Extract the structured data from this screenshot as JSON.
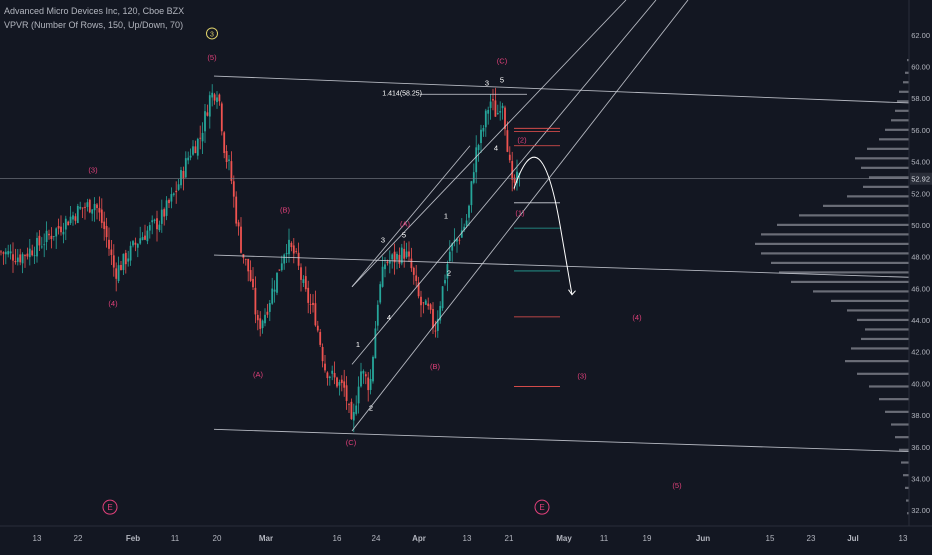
{
  "header": {
    "symbol_line": "Advanced Micro Devices Inc, 120, Cboe BZX",
    "indicator_line": "VPVR (Number Of Rows, 150, Up/Down, 70)"
  },
  "colors": {
    "background": "#131722",
    "wave_label": "#e0407a",
    "wave_label_white": "#ffffff",
    "fib_circle": "#e0d36c",
    "trendline": "#d1d4dc",
    "channel_teal": "#26a69a",
    "projection_red": "#ef5350",
    "volume_profile": "#b2b5be"
  },
  "chart_data": {
    "type": "candlestick",
    "title": "Advanced Micro Devices Inc, 120, Cboe BZX",
    "y_axis": {
      "side": "right",
      "ticks": [
        32.0,
        34.0,
        36.0,
        38.0,
        40.0,
        42.0,
        44.0,
        46.0,
        48.0,
        50.0,
        52.0,
        54.0,
        56.0,
        58.0,
        60.0,
        62.0,
        64.0
      ],
      "current_price": "52.92",
      "range": [
        31.0,
        64.2
      ]
    },
    "x_axis": {
      "ticks": [
        "13",
        "22",
        "Feb",
        "11",
        "20",
        "Mar",
        "16",
        "24",
        "Apr",
        "13",
        "21",
        "May",
        "11",
        "19",
        "Jun",
        "15",
        "23",
        "Jul",
        "13"
      ]
    },
    "price_path": [
      [
        0,
        48.3
      ],
      [
        20,
        48.0
      ],
      [
        40,
        48.8
      ],
      [
        60,
        49.9
      ],
      [
        80,
        51.0
      ],
      [
        95,
        51.4
      ],
      [
        105,
        49.6
      ],
      [
        115,
        47.0
      ],
      [
        125,
        47.8
      ],
      [
        140,
        49.2
      ],
      [
        160,
        50.3
      ],
      [
        175,
        52.0
      ],
      [
        190,
        54.6
      ],
      [
        200,
        55.5
      ],
      [
        210,
        58.1
      ],
      [
        218,
        58.6
      ],
      [
        225,
        54.5
      ],
      [
        230,
        53.5
      ],
      [
        236,
        50.6
      ],
      [
        242,
        48.3
      ],
      [
        250,
        46.8
      ],
      [
        258,
        43.5
      ],
      [
        266,
        44.6
      ],
      [
        276,
        46.6
      ],
      [
        286,
        48.8
      ],
      [
        295,
        48.1
      ],
      [
        305,
        45.7
      ],
      [
        315,
        44.3
      ],
      [
        325,
        41.0
      ],
      [
        335,
        40.2
      ],
      [
        345,
        39.6
      ],
      [
        352,
        37.0
      ],
      [
        360,
        40.9
      ],
      [
        370,
        39.8
      ],
      [
        378,
        45.4
      ],
      [
        385,
        47.6
      ],
      [
        395,
        47.9
      ],
      [
        405,
        48.3
      ],
      [
        412,
        47.1
      ],
      [
        420,
        45.0
      ],
      [
        428,
        44.6
      ],
      [
        435,
        43.4
      ],
      [
        442,
        45.8
      ],
      [
        450,
        48.4
      ],
      [
        460,
        49.4
      ],
      [
        468,
        50.5
      ],
      [
        475,
        54.4
      ],
      [
        482,
        55.8
      ],
      [
        490,
        57.9
      ],
      [
        497,
        56.9
      ],
      [
        502,
        58.2
      ],
      [
        507,
        55.4
      ],
      [
        512,
        52.3
      ],
      [
        516,
        52.8
      ],
      [
        520,
        52.9
      ]
    ],
    "wave_labels": [
      {
        "text": "(3)",
        "price": 53.3,
        "color": "pink"
      },
      {
        "text": "(4)",
        "price": 44.9,
        "color": "pink"
      },
      {
        "text": "(5)",
        "price": 60.4,
        "color": "pink"
      },
      {
        "text": "3",
        "price": 61.9,
        "color": "circle"
      },
      {
        "text": "(B)",
        "price": 50.8,
        "color": "pink"
      },
      {
        "text": "(A)",
        "price": 40.4,
        "color": "pink"
      },
      {
        "text": "(C)",
        "price": 36.1,
        "color": "pink"
      },
      {
        "text": "1",
        "price": 42.3,
        "color": "white"
      },
      {
        "text": "2",
        "price": 38.3,
        "color": "white"
      },
      {
        "text": "3",
        "price": 48.9,
        "color": "white"
      },
      {
        "text": "4",
        "price": 44.0,
        "color": "white"
      },
      {
        "text": "5",
        "price": 49.2,
        "color": "white"
      },
      {
        "text": "(A)",
        "price": 49.9,
        "color": "pink"
      },
      {
        "text": "1",
        "price": 50.4,
        "color": "white"
      },
      {
        "text": "2",
        "price": 46.8,
        "color": "white"
      },
      {
        "text": "(B)",
        "price": 40.9,
        "color": "pink"
      },
      {
        "text": "(C)",
        "price": 60.2,
        "color": "pink"
      },
      {
        "text": "3",
        "price": 58.8,
        "color": "white"
      },
      {
        "text": "5",
        "price": 59.0,
        "color": "white"
      },
      {
        "text": "4",
        "price": 54.7,
        "color": "white"
      },
      {
        "text": "1.414(58.25)",
        "price": 58.25,
        "color": "white"
      },
      {
        "text": "(2)",
        "price": 55.2,
        "color": "pink"
      },
      {
        "text": "(1)",
        "price": 50.6,
        "color": "pink"
      },
      {
        "text": "(4)",
        "price": 44.0,
        "color": "pink"
      },
      {
        "text": "(3)",
        "price": 40.3,
        "color": "pink"
      },
      {
        "text": "(5)",
        "price": 33.4,
        "color": "pink"
      },
      {
        "text": "E",
        "price": 32.0,
        "color": "pink-circle"
      },
      {
        "text": "E",
        "price": 32.0,
        "color": "pink-circle"
      }
    ],
    "trendlines": [
      {
        "name": "upper-descending",
        "from": [
          214,
          59.4
        ],
        "to": [
          909,
          57.7
        ]
      },
      {
        "name": "middle-descending",
        "from": [
          214,
          48.1
        ],
        "to": [
          909,
          46.7
        ]
      },
      {
        "name": "lower-descending",
        "from": [
          214,
          37.1
        ],
        "to": [
          909,
          35.7
        ]
      },
      {
        "name": "channel-lower",
        "from": [
          352,
          37.0
        ],
        "to": [
          688,
          64.2
        ]
      },
      {
        "name": "channel-middle",
        "from": [
          352,
          41.2
        ],
        "to": [
          656,
          64.2
        ]
      },
      {
        "name": "channel-upper",
        "from": [
          352,
          46.1
        ],
        "to": [
          626,
          64.2
        ]
      },
      {
        "name": "channel-top-short",
        "from": [
          352,
          46.1
        ],
        "to": [
          470,
          55.0
        ]
      }
    ],
    "fib_levels": [
      {
        "price": 58.25,
        "from": 420,
        "to": 527,
        "color": "white"
      },
      {
        "price": 56.1,
        "from": 514,
        "to": 560,
        "color": "red"
      },
      {
        "price": 55.9,
        "from": 514,
        "to": 560,
        "color": "red"
      },
      {
        "price": 55.0,
        "from": 514,
        "to": 560,
        "color": "red"
      },
      {
        "price": 51.4,
        "from": 514,
        "to": 560,
        "color": "white"
      },
      {
        "price": 49.8,
        "from": 514,
        "to": 560,
        "color": "teal"
      },
      {
        "price": 47.1,
        "from": 514,
        "to": 560,
        "color": "teal"
      },
      {
        "price": 44.2,
        "from": 514,
        "to": 560,
        "color": "red"
      },
      {
        "price": 39.8,
        "from": 514,
        "to": 560,
        "color": "red"
      }
    ],
    "horizontal_price_line": 52.92,
    "projection": [
      [
        514,
        52.3
      ],
      [
        540,
        55.8
      ],
      [
        560,
        50.0
      ],
      [
        572,
        45.6
      ]
    ],
    "volume_profile": {
      "anchor": "right",
      "bins": [
        [
          31.8,
          2
        ],
        [
          32.6,
          3
        ],
        [
          33.4,
          4
        ],
        [
          34.2,
          6
        ],
        [
          35.0,
          8
        ],
        [
          35.8,
          10
        ],
        [
          36.6,
          14
        ],
        [
          37.4,
          18
        ],
        [
          38.2,
          24
        ],
        [
          39.0,
          30
        ],
        [
          39.8,
          40
        ],
        [
          40.6,
          52
        ],
        [
          41.4,
          64
        ],
        [
          42.2,
          58
        ],
        [
          42.8,
          48
        ],
        [
          43.4,
          44
        ],
        [
          44.0,
          52
        ],
        [
          44.6,
          62
        ],
        [
          45.2,
          78
        ],
        [
          45.8,
          96
        ],
        [
          46.4,
          118
        ],
        [
          47.0,
          130
        ],
        [
          47.6,
          138
        ],
        [
          48.2,
          148
        ],
        [
          48.8,
          154
        ],
        [
          49.4,
          148
        ],
        [
          50.0,
          132
        ],
        [
          50.6,
          110
        ],
        [
          51.2,
          86
        ],
        [
          51.8,
          62
        ],
        [
          52.4,
          46
        ],
        [
          53.0,
          40
        ],
        [
          53.6,
          48
        ],
        [
          54.2,
          54
        ],
        [
          54.8,
          42
        ],
        [
          55.4,
          30
        ],
        [
          56.0,
          24
        ],
        [
          56.6,
          18
        ],
        [
          57.2,
          14
        ],
        [
          57.8,
          12
        ],
        [
          58.4,
          10
        ],
        [
          59.0,
          6
        ],
        [
          59.6,
          4
        ],
        [
          60.4,
          2
        ]
      ]
    },
    "grid": false,
    "legend": "top-left"
  }
}
